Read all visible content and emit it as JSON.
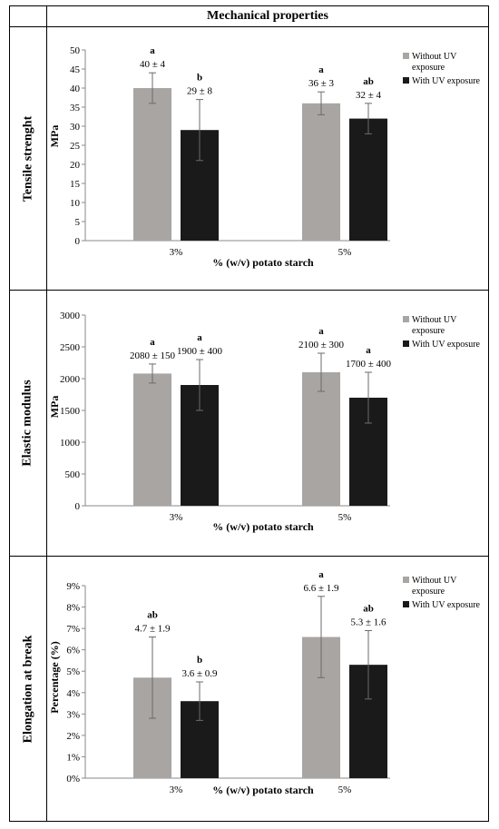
{
  "header": "Mechanical properties",
  "colors": {
    "without_uv": "#a8a5a3",
    "with_uv": "#1a1a1a",
    "error": "#6b6b6b"
  },
  "chart_data": [
    {
      "type": "bar",
      "row_label": "Tensile strenght",
      "ylabel": "MPa",
      "xlabel": "% (w/v) potato starch",
      "categories": [
        "3%",
        "5%"
      ],
      "ylim": [
        0,
        50
      ],
      "yticks": [
        0,
        5,
        10,
        15,
        20,
        25,
        30,
        35,
        40,
        45,
        50
      ],
      "ytick_labels": [
        "0",
        "5",
        "10",
        "15",
        "20",
        "25",
        "30",
        "35",
        "40",
        "45",
        "50"
      ],
      "legend": [
        "Without UV",
        "exposure",
        "With UV exposure"
      ],
      "series": [
        {
          "name": "Without UV exposure",
          "values": [
            40,
            36
          ],
          "errors": [
            4,
            3
          ],
          "labels": [
            "40 ± 4",
            "36 ± 3"
          ],
          "letters": [
            "a",
            "a"
          ]
        },
        {
          "name": "With UV exposure",
          "values": [
            29,
            32
          ],
          "errors": [
            8,
            4
          ],
          "labels": [
            "29 ± 8",
            "32 ± 4"
          ],
          "letters": [
            "b",
            "ab"
          ]
        }
      ]
    },
    {
      "type": "bar",
      "row_label": "Elastic modulus",
      "ylabel": "MPa",
      "xlabel": "% (w/v) potato starch",
      "categories": [
        "3%",
        "5%"
      ],
      "ylim": [
        0,
        3000
      ],
      "yticks": [
        0,
        500,
        1000,
        1500,
        2000,
        2500,
        3000
      ],
      "ytick_labels": [
        "0",
        "500",
        "1000",
        "1500",
        "2000",
        "2500",
        "3000"
      ],
      "legend": [
        "Without UV",
        "exposure",
        "With UV exposure"
      ],
      "series": [
        {
          "name": "Without UV exposure",
          "values": [
            2080,
            2100
          ],
          "errors": [
            150,
            300
          ],
          "labels": [
            "2080 ± 150",
            "2100 ± 300"
          ],
          "letters": [
            "a",
            "a"
          ]
        },
        {
          "name": "With UV exposure",
          "values": [
            1900,
            1700
          ],
          "errors": [
            400,
            400
          ],
          "labels": [
            "1900 ± 400",
            "1700 ± 400"
          ],
          "letters": [
            "a",
            "a"
          ]
        }
      ]
    },
    {
      "type": "bar",
      "row_label": "Elongation at break",
      "ylabel": "Percentage (%)",
      "xlabel": "% (w/v) potato starch",
      "categories": [
        "3%",
        "5%"
      ],
      "ylim": [
        0,
        9
      ],
      "yticks": [
        0,
        1,
        2,
        3,
        4,
        5,
        6,
        7,
        8,
        9
      ],
      "ytick_labels": [
        "0%",
        "1%",
        "2%",
        "3%",
        "4%",
        "5%",
        "6%",
        "7%",
        "8%",
        "9%"
      ],
      "legend": [
        "Without UV",
        "exposure",
        "With UV exposure"
      ],
      "series": [
        {
          "name": "Without UV exposure",
          "values": [
            4.7,
            6.6
          ],
          "errors": [
            1.9,
            1.9
          ],
          "labels": [
            "4.7 ± 1.9",
            "6.6 ± 1.9"
          ],
          "letters": [
            "ab",
            "a"
          ]
        },
        {
          "name": "With UV exposure",
          "values": [
            3.6,
            5.3
          ],
          "errors": [
            0.9,
            1.6
          ],
          "labels": [
            "3.6 ± 0.9",
            "5.3 ± 1.6"
          ],
          "letters": [
            "b",
            "ab"
          ]
        }
      ]
    }
  ]
}
